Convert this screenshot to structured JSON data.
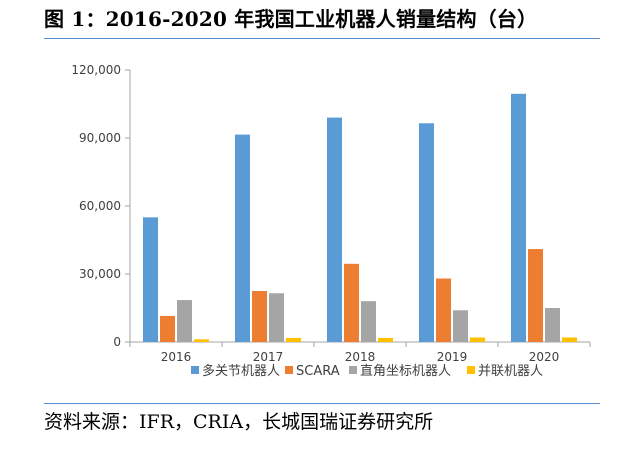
{
  "figure": {
    "title": "图 1：2016-2020 年我国工业机器人销量结构（台）",
    "source": "资料来源：IFR，CRIA，长城国瑞证券研究所"
  },
  "colors": {
    "rule": "#5b8fd3",
    "axis": "#a6a6a6",
    "series": [
      "#5b9bd5",
      "#ed7d31",
      "#a5a5a5",
      "#ffc000"
    ]
  },
  "chart_data": {
    "type": "bar",
    "categories": [
      "2016",
      "2017",
      "2018",
      "2019",
      "2020"
    ],
    "series": [
      {
        "name": "多关节机器人",
        "values": [
          55000,
          91500,
          99000,
          96500,
          109500
        ]
      },
      {
        "name": "SCARA",
        "values": [
          11500,
          22500,
          34500,
          28000,
          41000
        ]
      },
      {
        "name": "直角坐标机器人",
        "values": [
          18500,
          21500,
          18000,
          14000,
          15000
        ]
      },
      {
        "name": "并联机器人",
        "values": [
          1200,
          1800,
          1800,
          2000,
          2000
        ]
      }
    ],
    "ylim": [
      0,
      120000
    ],
    "yticks": [
      0,
      30000,
      60000,
      90000,
      120000
    ],
    "ytick_labels": [
      "0",
      "30,000",
      "60,000",
      "90,000",
      "120,000"
    ],
    "grid": false,
    "legend": "bottom"
  }
}
